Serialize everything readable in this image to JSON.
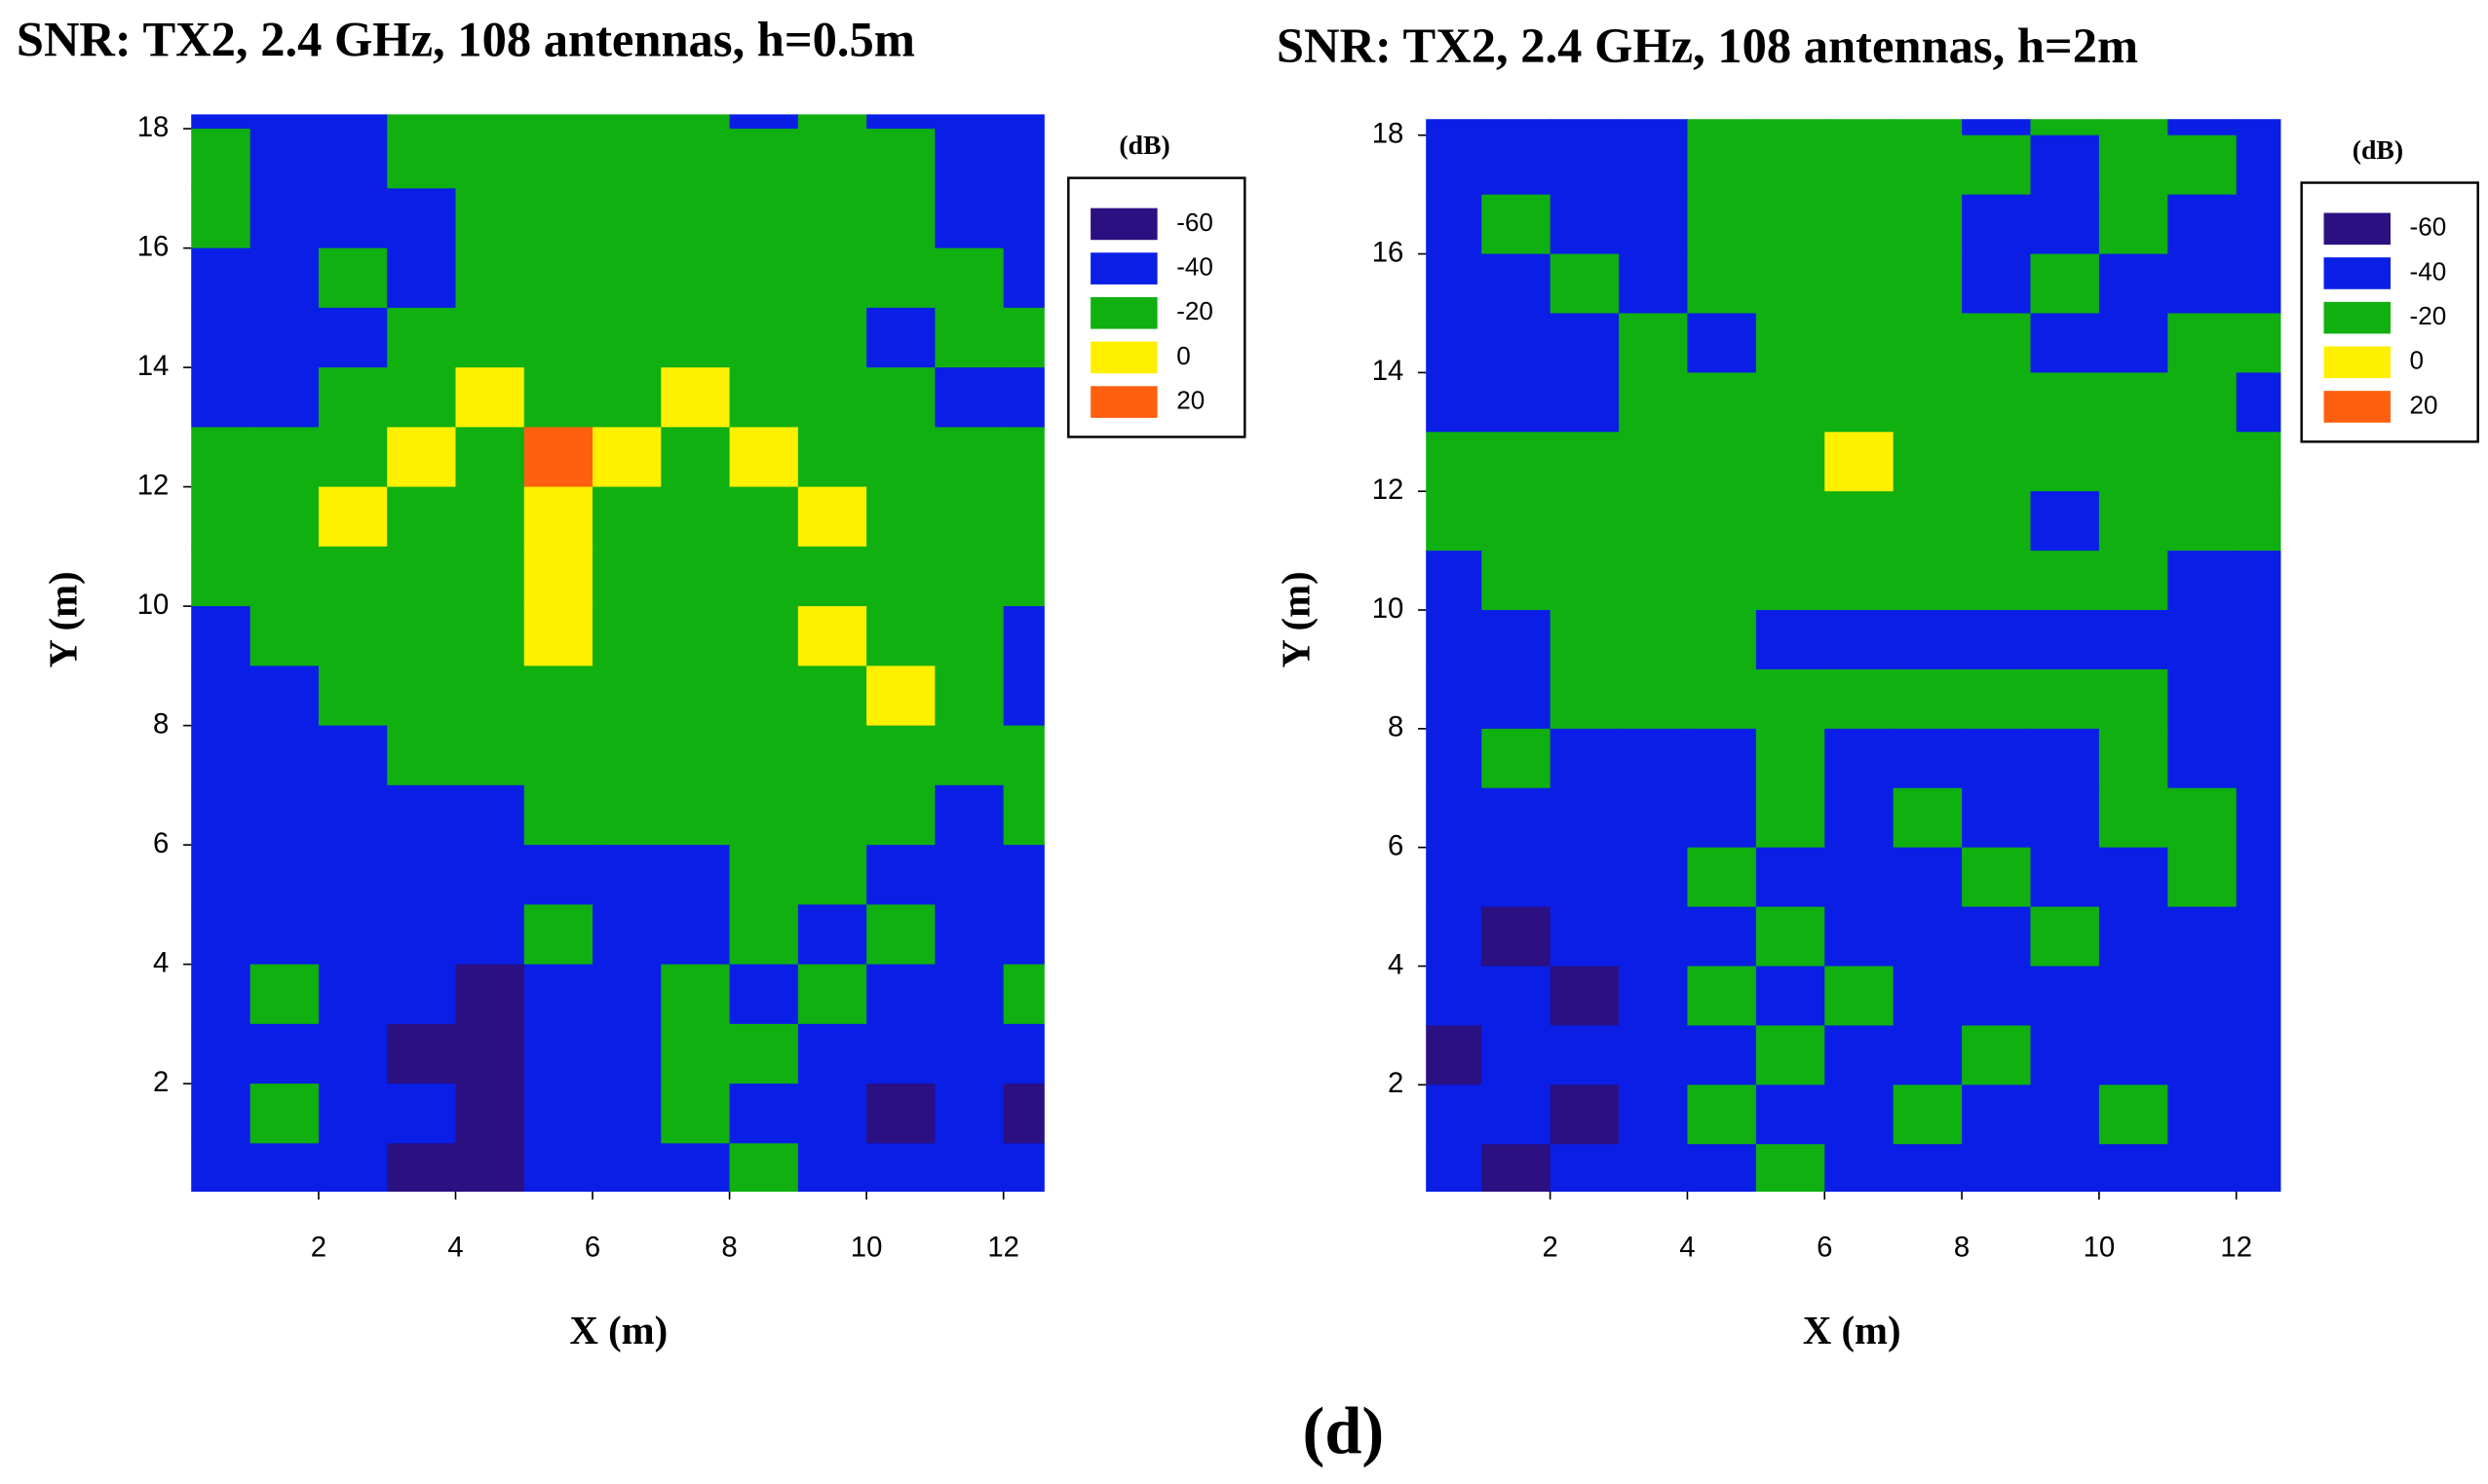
{
  "caption": "(d)",
  "chart_data": [
    {
      "type": "heatmap",
      "title": "SNR: TX2, 2.4 GHz, 108 antennas, h=0.5m",
      "x_label": "X (m)",
      "y_label": "Y (m)",
      "xlim": [
        0.14,
        12.6
      ],
      "ylim": [
        0.19,
        18.24
      ],
      "xticks": [
        2,
        4,
        6,
        8,
        10,
        12
      ],
      "yticks": [
        2,
        4,
        6,
        8,
        10,
        12,
        14,
        16,
        18
      ],
      "x": [
        0.5,
        1.5,
        2.5,
        3.5,
        4.5,
        5.5,
        6.5,
        7.5,
        8.5,
        9.5,
        10.5,
        11.5,
        12.5
      ],
      "y": [
        18.5,
        17.5,
        16.5,
        15.5,
        14.5,
        13.5,
        12.5,
        11.5,
        10.5,
        9.5,
        8.5,
        7.5,
        6.5,
        5.5,
        4.5,
        3.5,
        2.5,
        1.5,
        0.5
      ],
      "z": [
        [
          -40,
          -40,
          -40,
          -20,
          -20,
          -20,
          -20,
          -20,
          -40,
          -20,
          -40,
          -40,
          -40
        ],
        [
          -20,
          -40,
          -40,
          -20,
          -20,
          -20,
          -20,
          -20,
          -20,
          -20,
          -20,
          -40,
          -40
        ],
        [
          -20,
          -40,
          -40,
          -40,
          -20,
          -20,
          -20,
          -20,
          -20,
          -20,
          -20,
          -40,
          -40
        ],
        [
          -40,
          -40,
          -20,
          -40,
          -20,
          -20,
          -20,
          -20,
          -20,
          -20,
          -20,
          -20,
          -40
        ],
        [
          -40,
          -40,
          -40,
          -20,
          -20,
          -20,
          -20,
          -20,
          -20,
          -20,
          -40,
          -20,
          -20
        ],
        [
          -40,
          -40,
          -20,
          -20,
          0,
          -20,
          -20,
          0,
          -20,
          -20,
          -20,
          -40,
          -40
        ],
        [
          -20,
          -20,
          -20,
          0,
          -20,
          20,
          0,
          -20,
          0,
          -20,
          -20,
          -20,
          -20
        ],
        [
          -20,
          -20,
          0,
          -20,
          -20,
          0,
          -20,
          -20,
          -20,
          0,
          -20,
          -20,
          -20
        ],
        [
          -20,
          -20,
          -20,
          -20,
          -20,
          0,
          -20,
          -20,
          -20,
          -20,
          -20,
          -20,
          -20
        ],
        [
          -40,
          -20,
          -20,
          -20,
          -20,
          0,
          -20,
          -20,
          -20,
          0,
          -20,
          -20,
          -40
        ],
        [
          -40,
          -40,
          -20,
          -20,
          -20,
          -20,
          -20,
          -20,
          -20,
          -20,
          0,
          -20,
          -40
        ],
        [
          -40,
          -40,
          -40,
          -20,
          -20,
          -20,
          -20,
          -20,
          -20,
          -20,
          -20,
          -20,
          -20
        ],
        [
          -40,
          -40,
          -40,
          -40,
          -40,
          -20,
          -20,
          -20,
          -20,
          -20,
          -20,
          -40,
          -20
        ],
        [
          -40,
          -40,
          -40,
          -40,
          -40,
          -40,
          -40,
          -40,
          -20,
          -20,
          -40,
          -40,
          -40
        ],
        [
          -40,
          -40,
          -40,
          -40,
          -40,
          -20,
          -40,
          -40,
          -20,
          -40,
          -20,
          -40,
          -40
        ],
        [
          -40,
          -20,
          -40,
          -40,
          -60,
          -40,
          -40,
          -20,
          -40,
          -20,
          -40,
          -40,
          -20
        ],
        [
          -40,
          -40,
          -40,
          -60,
          -60,
          -40,
          -40,
          -20,
          -20,
          -40,
          -40,
          -40,
          -40
        ],
        [
          -40,
          -20,
          -40,
          -40,
          -60,
          -40,
          -40,
          -20,
          -40,
          -40,
          -60,
          -40,
          -60
        ],
        [
          -40,
          -40,
          -40,
          -60,
          -60,
          -40,
          -40,
          -40,
          -20,
          -40,
          -40,
          -40,
          -40
        ]
      ],
      "legend": {
        "title": "(dB)",
        "levels": [
          -60,
          -40,
          -20,
          0,
          20
        ],
        "colors": [
          "#2a1080",
          "#0a1ee6",
          "#10b010",
          "#fff000",
          "#ff6010"
        ]
      }
    },
    {
      "type": "heatmap",
      "title": "SNR: TX2, 2.4 GHz, 108 antennas, h=2m",
      "x_label": "X (m)",
      "y_label": "Y (m)",
      "xlim": [
        0.19,
        12.65
      ],
      "ylim": [
        0.2,
        18.27
      ],
      "xticks": [
        2,
        4,
        6,
        8,
        10,
        12
      ],
      "yticks": [
        2,
        4,
        6,
        8,
        10,
        12,
        14,
        16,
        18
      ],
      "x": [
        0.5,
        1.5,
        2.5,
        3.5,
        4.5,
        5.5,
        6.5,
        7.5,
        8.5,
        9.5,
        10.5,
        11.5,
        12.5
      ],
      "y": [
        18.5,
        17.5,
        16.5,
        15.5,
        14.5,
        13.5,
        12.5,
        11.5,
        10.5,
        9.5,
        8.5,
        7.5,
        6.5,
        5.5,
        4.5,
        3.5,
        2.5,
        1.5,
        0.5
      ],
      "z": [
        [
          -40,
          -40,
          -40,
          -40,
          -20,
          -20,
          -20,
          -20,
          -40,
          -20,
          -20,
          -40,
          -40
        ],
        [
          -40,
          -40,
          -40,
          -40,
          -20,
          -20,
          -20,
          -20,
          -20,
          -40,
          -20,
          -20,
          -40
        ],
        [
          -40,
          -20,
          -40,
          -40,
          -20,
          -20,
          -20,
          -20,
          -40,
          -40,
          -20,
          -40,
          -40
        ],
        [
          -40,
          -40,
          -20,
          -40,
          -20,
          -20,
          -20,
          -20,
          -40,
          -20,
          -40,
          -40,
          -40
        ],
        [
          -40,
          -40,
          -40,
          -20,
          -40,
          -20,
          -20,
          -20,
          -20,
          -40,
          -40,
          -20,
          -20
        ],
        [
          -40,
          -40,
          -40,
          -20,
          -20,
          -20,
          -20,
          -20,
          -20,
          -20,
          -20,
          -20,
          -40
        ],
        [
          -20,
          -20,
          -20,
          -20,
          -20,
          -20,
          0,
          -20,
          -20,
          -20,
          -20,
          -20,
          -20
        ],
        [
          -20,
          -20,
          -20,
          -20,
          -20,
          -20,
          -20,
          -20,
          -20,
          -40,
          -20,
          -20,
          -20
        ],
        [
          -40,
          -20,
          -20,
          -20,
          -20,
          -20,
          -20,
          -20,
          -20,
          -20,
          -20,
          -40,
          -40
        ],
        [
          -40,
          -40,
          -20,
          -20,
          -20,
          -40,
          -40,
          -40,
          -40,
          -40,
          -40,
          -40,
          -40
        ],
        [
          -40,
          -40,
          -20,
          -20,
          -20,
          -20,
          -20,
          -20,
          -20,
          -20,
          -20,
          -40,
          -40
        ],
        [
          -40,
          -20,
          -40,
          -40,
          -40,
          -20,
          -40,
          -40,
          -40,
          -40,
          -20,
          -40,
          -40
        ],
        [
          -40,
          -40,
          -40,
          -40,
          -40,
          -20,
          -40,
          -20,
          -40,
          -40,
          -20,
          -20,
          -40
        ],
        [
          -40,
          -40,
          -40,
          -40,
          -20,
          -40,
          -40,
          -40,
          -20,
          -40,
          -40,
          -20,
          -40
        ],
        [
          -40,
          -60,
          -40,
          -40,
          -40,
          -20,
          -40,
          -40,
          -40,
          -20,
          -40,
          -40,
          -40
        ],
        [
          -40,
          -40,
          -60,
          -40,
          -20,
          -40,
          -20,
          -40,
          -40,
          -40,
          -40,
          -40,
          -40
        ],
        [
          -60,
          -40,
          -40,
          -40,
          -40,
          -20,
          -40,
          -40,
          -20,
          -40,
          -40,
          -40,
          -40
        ],
        [
          -40,
          -40,
          -60,
          -40,
          -20,
          -40,
          -40,
          -20,
          -40,
          -40,
          -20,
          -40,
          -40
        ],
        [
          -40,
          -60,
          -40,
          -40,
          -40,
          -20,
          -40,
          -40,
          -40,
          -40,
          -40,
          -40,
          -40
        ]
      ],
      "legend": {
        "title": "(dB)",
        "levels": [
          -60,
          -40,
          -20,
          0,
          20
        ],
        "colors": [
          "#2a1080",
          "#0a1ee6",
          "#10b010",
          "#fff000",
          "#ff6010"
        ]
      }
    }
  ]
}
